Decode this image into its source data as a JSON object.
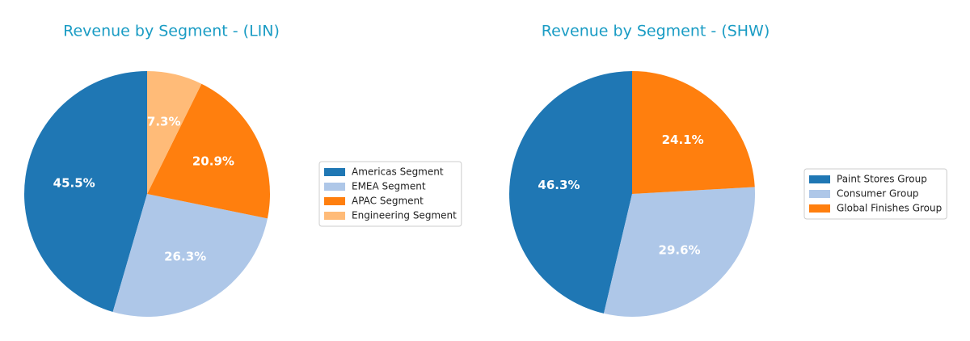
{
  "chart_data": [
    {
      "type": "pie",
      "title": "Revenue by Segment - (LIN)",
      "categories": [
        "Americas Segment",
        "EMEA Segment",
        "APAC Segment",
        "Engineering Segment"
      ],
      "values": [
        45.5,
        26.3,
        20.9,
        7.3
      ],
      "value_labels": [
        "45.5%",
        "26.3%",
        "20.9%",
        "7.3%"
      ],
      "colors": [
        "#1f77b4",
        "#aec7e8",
        "#ff7f0e",
        "#ffbb78"
      ],
      "legend": "right"
    },
    {
      "type": "pie",
      "title": "Revenue by Segment - (SHW)",
      "categories": [
        "Paint Stores Group",
        "Consumer Group",
        "Global Finishes Group"
      ],
      "values": [
        46.3,
        29.6,
        24.1
      ],
      "value_labels": [
        "46.3%",
        "29.6%",
        "24.1%"
      ],
      "colors": [
        "#1f77b4",
        "#aec7e8",
        "#ff7f0e"
      ],
      "legend": "right"
    }
  ]
}
